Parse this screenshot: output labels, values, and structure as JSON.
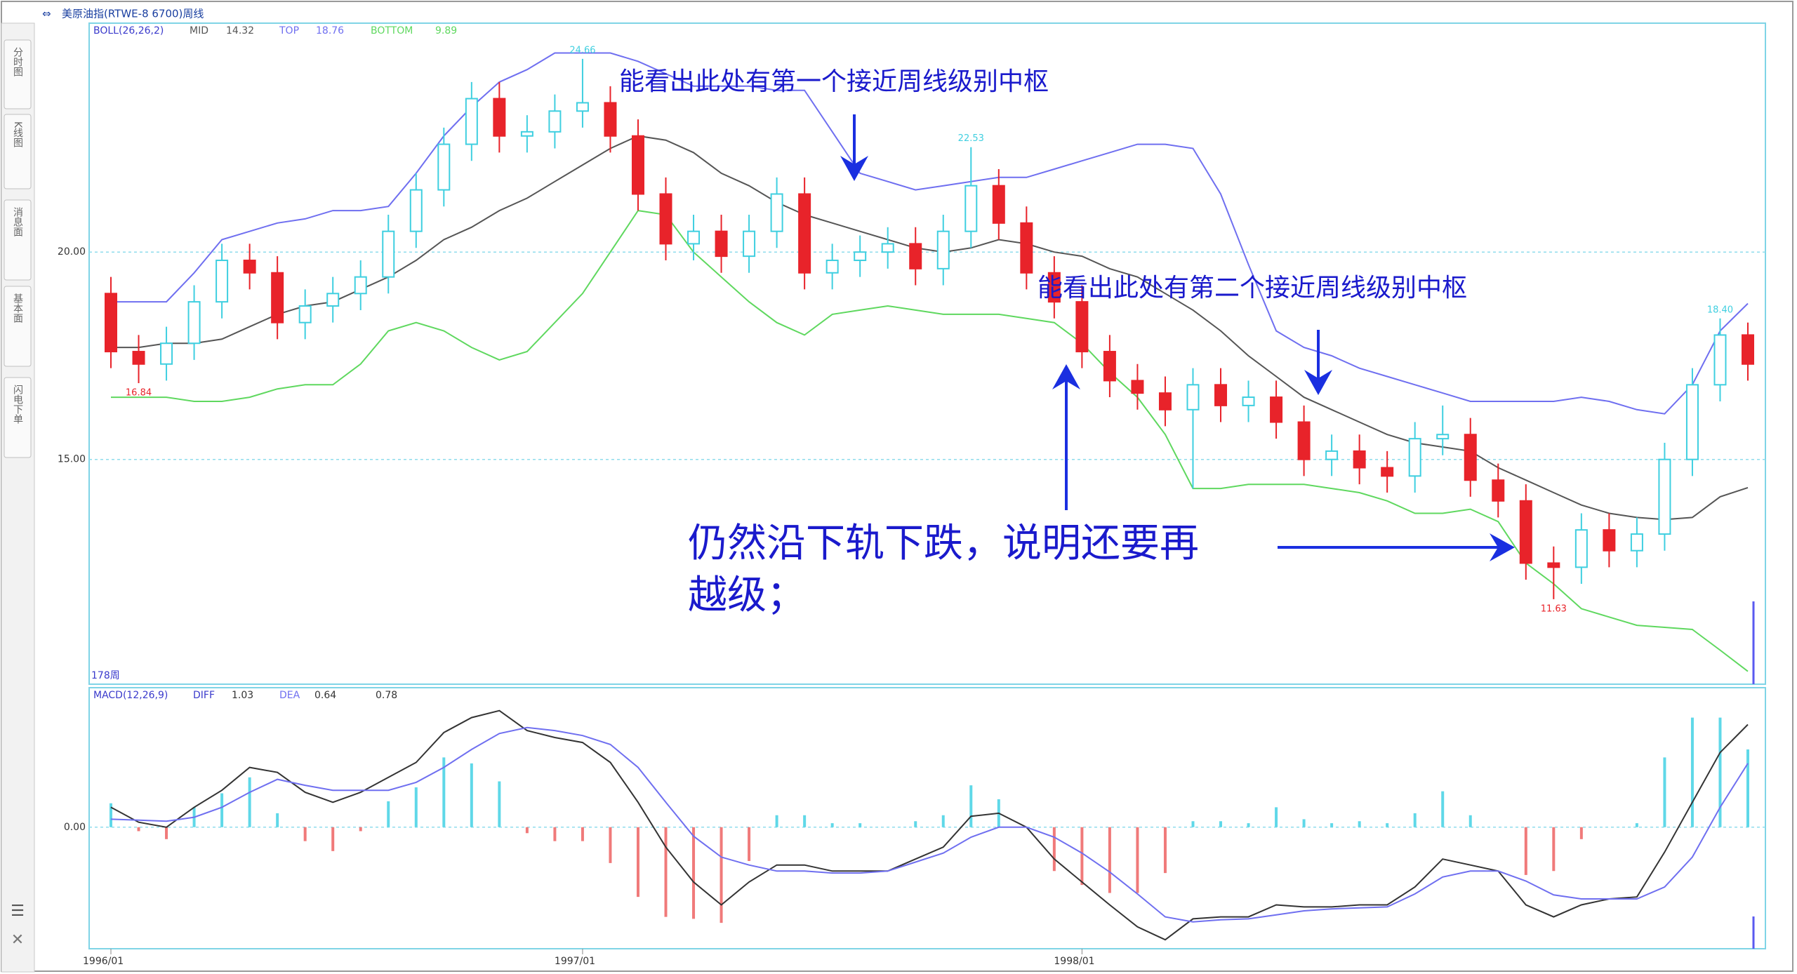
{
  "sidebar": {
    "tabs": [
      "分时图",
      "K线图",
      "消息面",
      "基本面",
      "闪电下单"
    ]
  },
  "chart_data": [
    {
      "type": "candlestick",
      "title": "美原油指(RTWE-8 6700)周线",
      "indicator": "BOLL(26,26,2)",
      "period_label": "178周",
      "ylim": [
        9.58,
        25.52
      ],
      "yticks": [
        {
          "value": 15,
          "label": "15.00"
        },
        {
          "value": 20,
          "label": "20.00"
        }
      ],
      "grid": true,
      "candles": {
        "up_color": "#3fcfe0",
        "down_color": "#e8232a",
        "open": [
          19.0,
          17.6,
          17.3,
          17.8,
          18.8,
          19.8,
          19.5,
          18.3,
          18.7,
          19.0,
          19.4,
          20.5,
          21.5,
          22.6,
          23.7,
          22.8,
          22.9,
          23.4,
          23.6,
          22.8,
          21.4,
          20.2,
          20.5,
          19.9,
          20.5,
          21.4,
          19.5,
          19.8,
          20.0,
          20.2,
          19.6,
          20.5,
          21.6,
          20.7,
          19.5,
          18.8,
          17.6,
          16.9,
          16.6,
          16.2,
          16.8,
          16.3,
          16.5,
          15.9,
          15.0,
          15.2,
          14.8,
          14.6,
          15.5,
          15.6,
          14.5,
          14.0,
          12.5,
          12.4,
          13.3,
          12.8,
          13.2,
          15.0,
          16.8,
          18.0
        ],
        "high": [
          19.4,
          18.0,
          18.2,
          19.2,
          20.2,
          20.2,
          19.9,
          19.1,
          19.4,
          19.8,
          20.9,
          21.9,
          23.0,
          24.1,
          24.1,
          23.3,
          23.8,
          24.66,
          24.0,
          23.2,
          21.8,
          20.9,
          20.9,
          20.9,
          21.8,
          21.8,
          20.2,
          20.4,
          20.6,
          20.6,
          20.9,
          22.53,
          22.0,
          21.1,
          19.9,
          19.2,
          18.0,
          17.3,
          17.0,
          17.2,
          17.2,
          16.9,
          16.9,
          16.3,
          15.6,
          15.6,
          15.2,
          15.9,
          16.3,
          16.0,
          14.9,
          14.4,
          12.9,
          13.7,
          13.7,
          13.6,
          15.4,
          17.2,
          18.4,
          18.3
        ],
        "low": [
          17.2,
          16.84,
          16.9,
          17.4,
          18.4,
          19.1,
          17.9,
          17.9,
          18.3,
          18.6,
          19.0,
          20.1,
          21.1,
          22.2,
          22.4,
          22.4,
          22.5,
          23.0,
          22.4,
          21.0,
          19.8,
          19.8,
          19.5,
          19.5,
          20.1,
          19.1,
          19.1,
          19.4,
          19.6,
          19.2,
          19.2,
          20.1,
          20.3,
          19.1,
          18.4,
          17.2,
          16.5,
          16.2,
          15.8,
          14.3,
          15.9,
          15.9,
          15.5,
          14.6,
          14.6,
          14.4,
          14.2,
          14.2,
          15.1,
          14.1,
          13.6,
          12.1,
          11.63,
          12.0,
          12.4,
          12.4,
          12.8,
          14.6,
          16.4,
          16.9
        ],
        "close": [
          17.6,
          17.3,
          17.8,
          18.8,
          19.8,
          19.5,
          18.3,
          18.7,
          19.0,
          19.4,
          20.5,
          21.5,
          22.6,
          23.7,
          22.8,
          22.9,
          23.4,
          23.6,
          22.8,
          21.4,
          20.2,
          20.5,
          19.9,
          20.5,
          21.4,
          19.5,
          19.8,
          20.0,
          20.2,
          19.6,
          20.5,
          21.6,
          20.7,
          19.5,
          18.8,
          17.6,
          16.9,
          16.6,
          16.2,
          16.8,
          16.3,
          16.5,
          15.9,
          15.0,
          15.2,
          14.8,
          14.6,
          15.5,
          15.6,
          14.5,
          14.0,
          12.5,
          12.4,
          13.3,
          12.8,
          13.2,
          15.0,
          16.8,
          18.0,
          17.3
        ],
        "high_labels": [
          null,
          null,
          null,
          null,
          null,
          null,
          null,
          null,
          null,
          null,
          null,
          null,
          null,
          null,
          null,
          null,
          null,
          "24.66",
          null,
          null,
          null,
          null,
          null,
          null,
          null,
          null,
          null,
          null,
          null,
          null,
          null,
          "22.53",
          null,
          null,
          null,
          null,
          null,
          null,
          null,
          null,
          null,
          null,
          null,
          null,
          null,
          null,
          null,
          null,
          null,
          null,
          null,
          null,
          null,
          null,
          null,
          null,
          null,
          null,
          "18.40",
          null
        ],
        "low_labels": [
          null,
          "16.84",
          null,
          null,
          null,
          null,
          null,
          null,
          null,
          null,
          null,
          null,
          null,
          null,
          null,
          null,
          null,
          null,
          null,
          null,
          null,
          null,
          null,
          null,
          null,
          null,
          null,
          null,
          null,
          null,
          null,
          null,
          null,
          null,
          null,
          null,
          null,
          null,
          null,
          null,
          null,
          null,
          null,
          null,
          null,
          null,
          null,
          null,
          null,
          null,
          null,
          null,
          "11.63",
          null,
          null,
          null,
          null,
          null,
          null,
          null
        ]
      },
      "series": [
        {
          "name": "MID",
          "color": "#555555",
          "values": [
            17.7,
            17.7,
            17.8,
            17.8,
            17.9,
            18.2,
            18.5,
            18.7,
            18.8,
            19.1,
            19.4,
            19.8,
            20.3,
            20.6,
            21.0,
            21.3,
            21.7,
            22.1,
            22.5,
            22.8,
            22.7,
            22.4,
            21.9,
            21.6,
            21.2,
            20.9,
            20.7,
            20.5,
            20.3,
            20.1,
            20.0,
            20.1,
            20.3,
            20.2,
            20.0,
            19.9,
            19.6,
            19.4,
            19.0,
            18.6,
            18.1,
            17.5,
            17.0,
            16.5,
            16.2,
            15.9,
            15.6,
            15.4,
            15.3,
            15.2,
            14.8,
            14.5,
            14.2,
            13.9,
            13.7,
            13.6,
            13.55,
            13.6,
            14.1,
            14.32
          ]
        },
        {
          "name": "TOP",
          "color": "#6f6ff0",
          "values": [
            18.8,
            18.8,
            18.8,
            19.5,
            20.3,
            20.5,
            20.7,
            20.8,
            21.0,
            21.0,
            21.1,
            21.9,
            22.8,
            23.5,
            24.1,
            24.4,
            24.8,
            24.8,
            24.8,
            24.6,
            24.3,
            24.0,
            24.0,
            24.0,
            23.9,
            23.9,
            22.9,
            21.9,
            21.7,
            21.5,
            21.6,
            21.7,
            21.8,
            21.8,
            22.0,
            22.2,
            22.4,
            22.6,
            22.6,
            22.5,
            21.4,
            19.7,
            18.1,
            17.7,
            17.5,
            17.2,
            17.0,
            16.8,
            16.6,
            16.4,
            16.4,
            16.4,
            16.4,
            16.5,
            16.4,
            16.2,
            16.1,
            16.8,
            18.1,
            18.76
          ]
        },
        {
          "name": "BOTTOM",
          "color": "#5fd85f",
          "values": [
            16.5,
            16.5,
            16.5,
            16.4,
            16.4,
            16.5,
            16.7,
            16.8,
            16.8,
            17.3,
            18.1,
            18.3,
            18.1,
            17.7,
            17.4,
            17.6,
            18.3,
            19.0,
            20.0,
            21.0,
            20.9,
            20.0,
            19.4,
            18.8,
            18.3,
            18.0,
            18.5,
            18.6,
            18.7,
            18.6,
            18.5,
            18.5,
            18.5,
            18.4,
            18.3,
            17.8,
            17.1,
            16.5,
            15.6,
            14.3,
            14.3,
            14.4,
            14.4,
            14.4,
            14.3,
            14.2,
            14.0,
            13.7,
            13.7,
            13.8,
            13.5,
            12.5,
            12.0,
            11.4,
            11.2,
            11.0,
            10.95,
            10.9,
            10.4,
            9.89
          ]
        }
      ],
      "annotations": [
        "能看出此处有第一个接近周线级别中枢",
        "能看出此处有第二个接近周线级别中枢",
        "仍然沿下轨下跌，说明还要再",
        "越级；"
      ]
    },
    {
      "type": "macd",
      "indicator": "MACD(12,26,9)",
      "categories": [
        "1996/01",
        null,
        null,
        null,
        null,
        null,
        null,
        null,
        null,
        null,
        null,
        null,
        null,
        null,
        null,
        null,
        null,
        "1997/01",
        null,
        null,
        null,
        null,
        null,
        null,
        null,
        null,
        null,
        null,
        null,
        null,
        null,
        null,
        null,
        null,
        null,
        "1998/01",
        null,
        null,
        null,
        null,
        null,
        null,
        null,
        null,
        null,
        null,
        null,
        null,
        null,
        null,
        null,
        null,
        null,
        null,
        null,
        null,
        null,
        null,
        null,
        null
      ],
      "ylim": [
        -1.22,
        1.4
      ],
      "yticks": [
        {
          "value": 0,
          "label": "0.00"
        }
      ],
      "series": [
        {
          "name": "DIFF",
          "color": "#333333",
          "values": [
            0.2,
            0.05,
            0.0,
            0.2,
            0.37,
            0.6,
            0.55,
            0.35,
            0.25,
            0.35,
            0.5,
            0.65,
            0.95,
            1.1,
            1.17,
            0.97,
            0.9,
            0.85,
            0.65,
            0.25,
            -0.2,
            -0.55,
            -0.78,
            -0.55,
            -0.38,
            -0.38,
            -0.44,
            -0.44,
            -0.44,
            -0.32,
            -0.2,
            0.11,
            0.14,
            0.0,
            -0.32,
            -0.55,
            -0.78,
            -1.0,
            -1.13,
            -0.92,
            -0.9,
            -0.9,
            -0.78,
            -0.8,
            -0.8,
            -0.78,
            -0.78,
            -0.6,
            -0.32,
            -0.38,
            -0.44,
            -0.78,
            -0.9,
            -0.78,
            -0.72,
            -0.7,
            -0.25,
            0.25,
            0.75,
            1.03
          ]
        },
        {
          "name": "DEA",
          "color": "#6f6ff0",
          "values": [
            0.08,
            0.07,
            0.06,
            0.1,
            0.2,
            0.35,
            0.48,
            0.42,
            0.37,
            0.37,
            0.37,
            0.45,
            0.6,
            0.78,
            0.94,
            1.0,
            0.97,
            0.92,
            0.83,
            0.6,
            0.25,
            -0.09,
            -0.3,
            -0.38,
            -0.44,
            -0.44,
            -0.46,
            -0.46,
            -0.44,
            -0.35,
            -0.26,
            -0.1,
            0.0,
            0.0,
            -0.1,
            -0.26,
            -0.45,
            -0.67,
            -0.9,
            -0.95,
            -0.93,
            -0.92,
            -0.88,
            -0.84,
            -0.82,
            -0.81,
            -0.8,
            -0.67,
            -0.5,
            -0.44,
            -0.44,
            -0.54,
            -0.68,
            -0.72,
            -0.72,
            -0.72,
            -0.6,
            -0.3,
            0.2,
            0.64
          ]
        }
      ],
      "histogram": {
        "up_color": "#5fd8e8",
        "down_color": "#f07a7a",
        "values": [
          0.24,
          -0.04,
          -0.12,
          0.2,
          0.34,
          0.5,
          0.14,
          -0.14,
          -0.24,
          -0.04,
          0.26,
          0.4,
          0.7,
          0.64,
          0.46,
          -0.06,
          -0.14,
          -0.14,
          -0.36,
          -0.7,
          -0.9,
          -0.92,
          -0.96,
          -0.34,
          0.12,
          0.12,
          0.04,
          0.04,
          0.0,
          0.06,
          0.12,
          0.42,
          0.28,
          0.0,
          -0.44,
          -0.58,
          -0.66,
          -0.66,
          -0.46,
          0.06,
          0.06,
          0.04,
          0.2,
          0.08,
          0.04,
          0.06,
          0.04,
          0.14,
          0.36,
          0.12,
          0.0,
          -0.48,
          -0.44,
          -0.12,
          0.0,
          0.04,
          0.7,
          1.1,
          1.1,
          0.78
        ]
      }
    }
  ]
}
